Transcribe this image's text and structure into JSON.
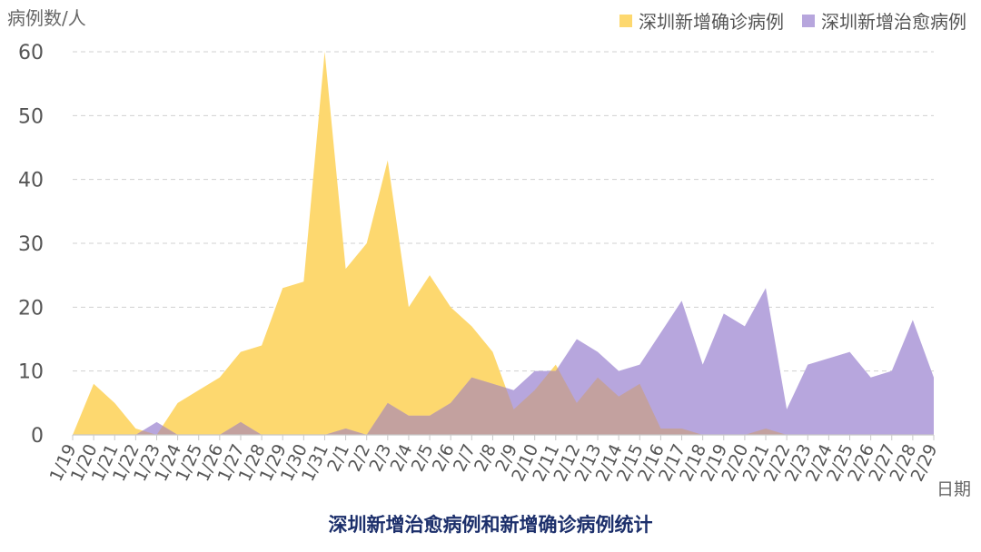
{
  "chart_data": {
    "type": "area",
    "title": "深圳新增治愈病例和新增确诊病例统计",
    "ylabel": "病例数/人",
    "xlabel": "日期",
    "ylim": [
      0,
      60
    ],
    "yticks": [
      0,
      10,
      20,
      30,
      40,
      50,
      60
    ],
    "grid": true,
    "legend_position": "top-right",
    "categories": [
      "1/19",
      "1/20",
      "1/21",
      "1/22",
      "1/23",
      "1/24",
      "1/25",
      "1/26",
      "1/27",
      "1/28",
      "1/29",
      "1/30",
      "1/31",
      "2/1",
      "2/2",
      "2/3",
      "2/4",
      "2/5",
      "2/6",
      "2/7",
      "2/8",
      "2/9",
      "2/10",
      "2/11",
      "2/12",
      "2/13",
      "2/14",
      "2/15",
      "2/16",
      "2/17",
      "2/18",
      "2/19",
      "2/20",
      "2/21",
      "2/22",
      "2/23",
      "2/24",
      "2/25",
      "2/26",
      "2/27",
      "2/28",
      "2/29"
    ],
    "series": [
      {
        "name": "深圳新增确诊病例",
        "color": "#fdd86f",
        "values": [
          0,
          8,
          5,
          1,
          0,
          5,
          7,
          9,
          13,
          14,
          23,
          24,
          60,
          26,
          30,
          43,
          20,
          25,
          20,
          17,
          13,
          4,
          7,
          11,
          5,
          9,
          6,
          8,
          1,
          1,
          0,
          0,
          0,
          1,
          0,
          0,
          0,
          0,
          0,
          0,
          0,
          0
        ]
      },
      {
        "name": "深圳新增治愈病例",
        "color": "#b7a6dd",
        "values": [
          0,
          0,
          0,
          0,
          2,
          0,
          0,
          0,
          2,
          0,
          0,
          0,
          0,
          1,
          0,
          5,
          3,
          3,
          5,
          9,
          8,
          7,
          10,
          10,
          15,
          13,
          10,
          11,
          16,
          21,
          11,
          19,
          17,
          23,
          4,
          11,
          12,
          13,
          9,
          10,
          18,
          9
        ]
      }
    ],
    "overlap_color": "#c3a19f"
  }
}
